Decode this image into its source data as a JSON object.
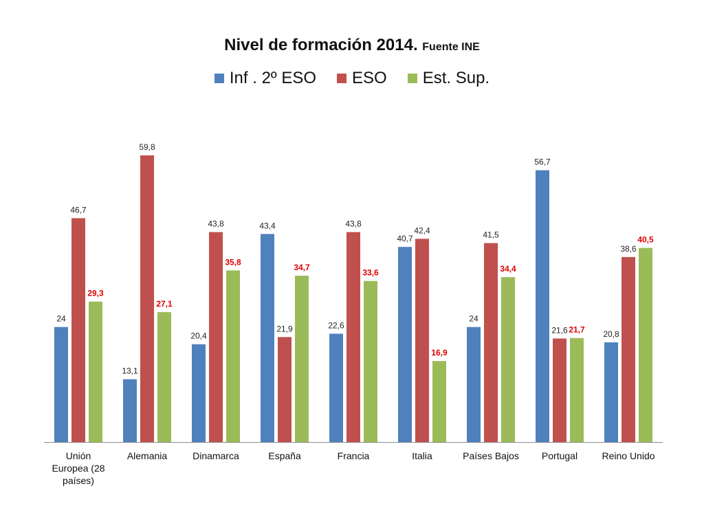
{
  "chart_data": {
    "type": "bar",
    "title": "Nivel de formación 2014.",
    "subtitle": "Fuente INE",
    "categories": [
      [
        "Unión",
        "Europea (28",
        "países)"
      ],
      [
        "Alemania"
      ],
      [
        "Dinamarca"
      ],
      [
        "España"
      ],
      [
        "Francia"
      ],
      [
        "Italia"
      ],
      [
        "Países Bajos"
      ],
      [
        "Portugal"
      ],
      [
        "Reino Unido"
      ]
    ],
    "series": [
      {
        "name": "Inf . 2º ESO",
        "color": "#4F81BD",
        "label_color": "#222222",
        "label_bold": false,
        "values": [
          24,
          13.1,
          20.4,
          43.4,
          22.6,
          40.7,
          24,
          56.7,
          20.8
        ],
        "labels": [
          "24",
          "13,1",
          "20,4",
          "43,4",
          "22,6",
          "40,7",
          "24",
          "56,7",
          "20,8"
        ]
      },
      {
        "name": "ESO",
        "color": "#C0504D",
        "label_color": "#222222",
        "label_bold": false,
        "values": [
          46.7,
          59.8,
          43.8,
          21.9,
          43.8,
          42.4,
          41.5,
          21.6,
          38.6
        ],
        "labels": [
          "46,7",
          "59,8",
          "43,8",
          "21,9",
          "43,8",
          "42,4",
          "41,5",
          "21,6",
          "38,6"
        ]
      },
      {
        "name": "Est. Sup.",
        "color": "#9BBB59",
        "label_color": "#E00000",
        "label_bold": true,
        "values": [
          29.3,
          27.1,
          35.8,
          34.7,
          33.6,
          16.9,
          34.4,
          21.7,
          40.5
        ],
        "labels": [
          "29,3",
          "27,1",
          "35,8",
          "34,7",
          "33,6",
          "16,9",
          "34,4",
          "21,7",
          "40,5"
        ]
      }
    ],
    "ylim": [
      0,
      60
    ],
    "grid": false,
    "legend_position": "top"
  }
}
